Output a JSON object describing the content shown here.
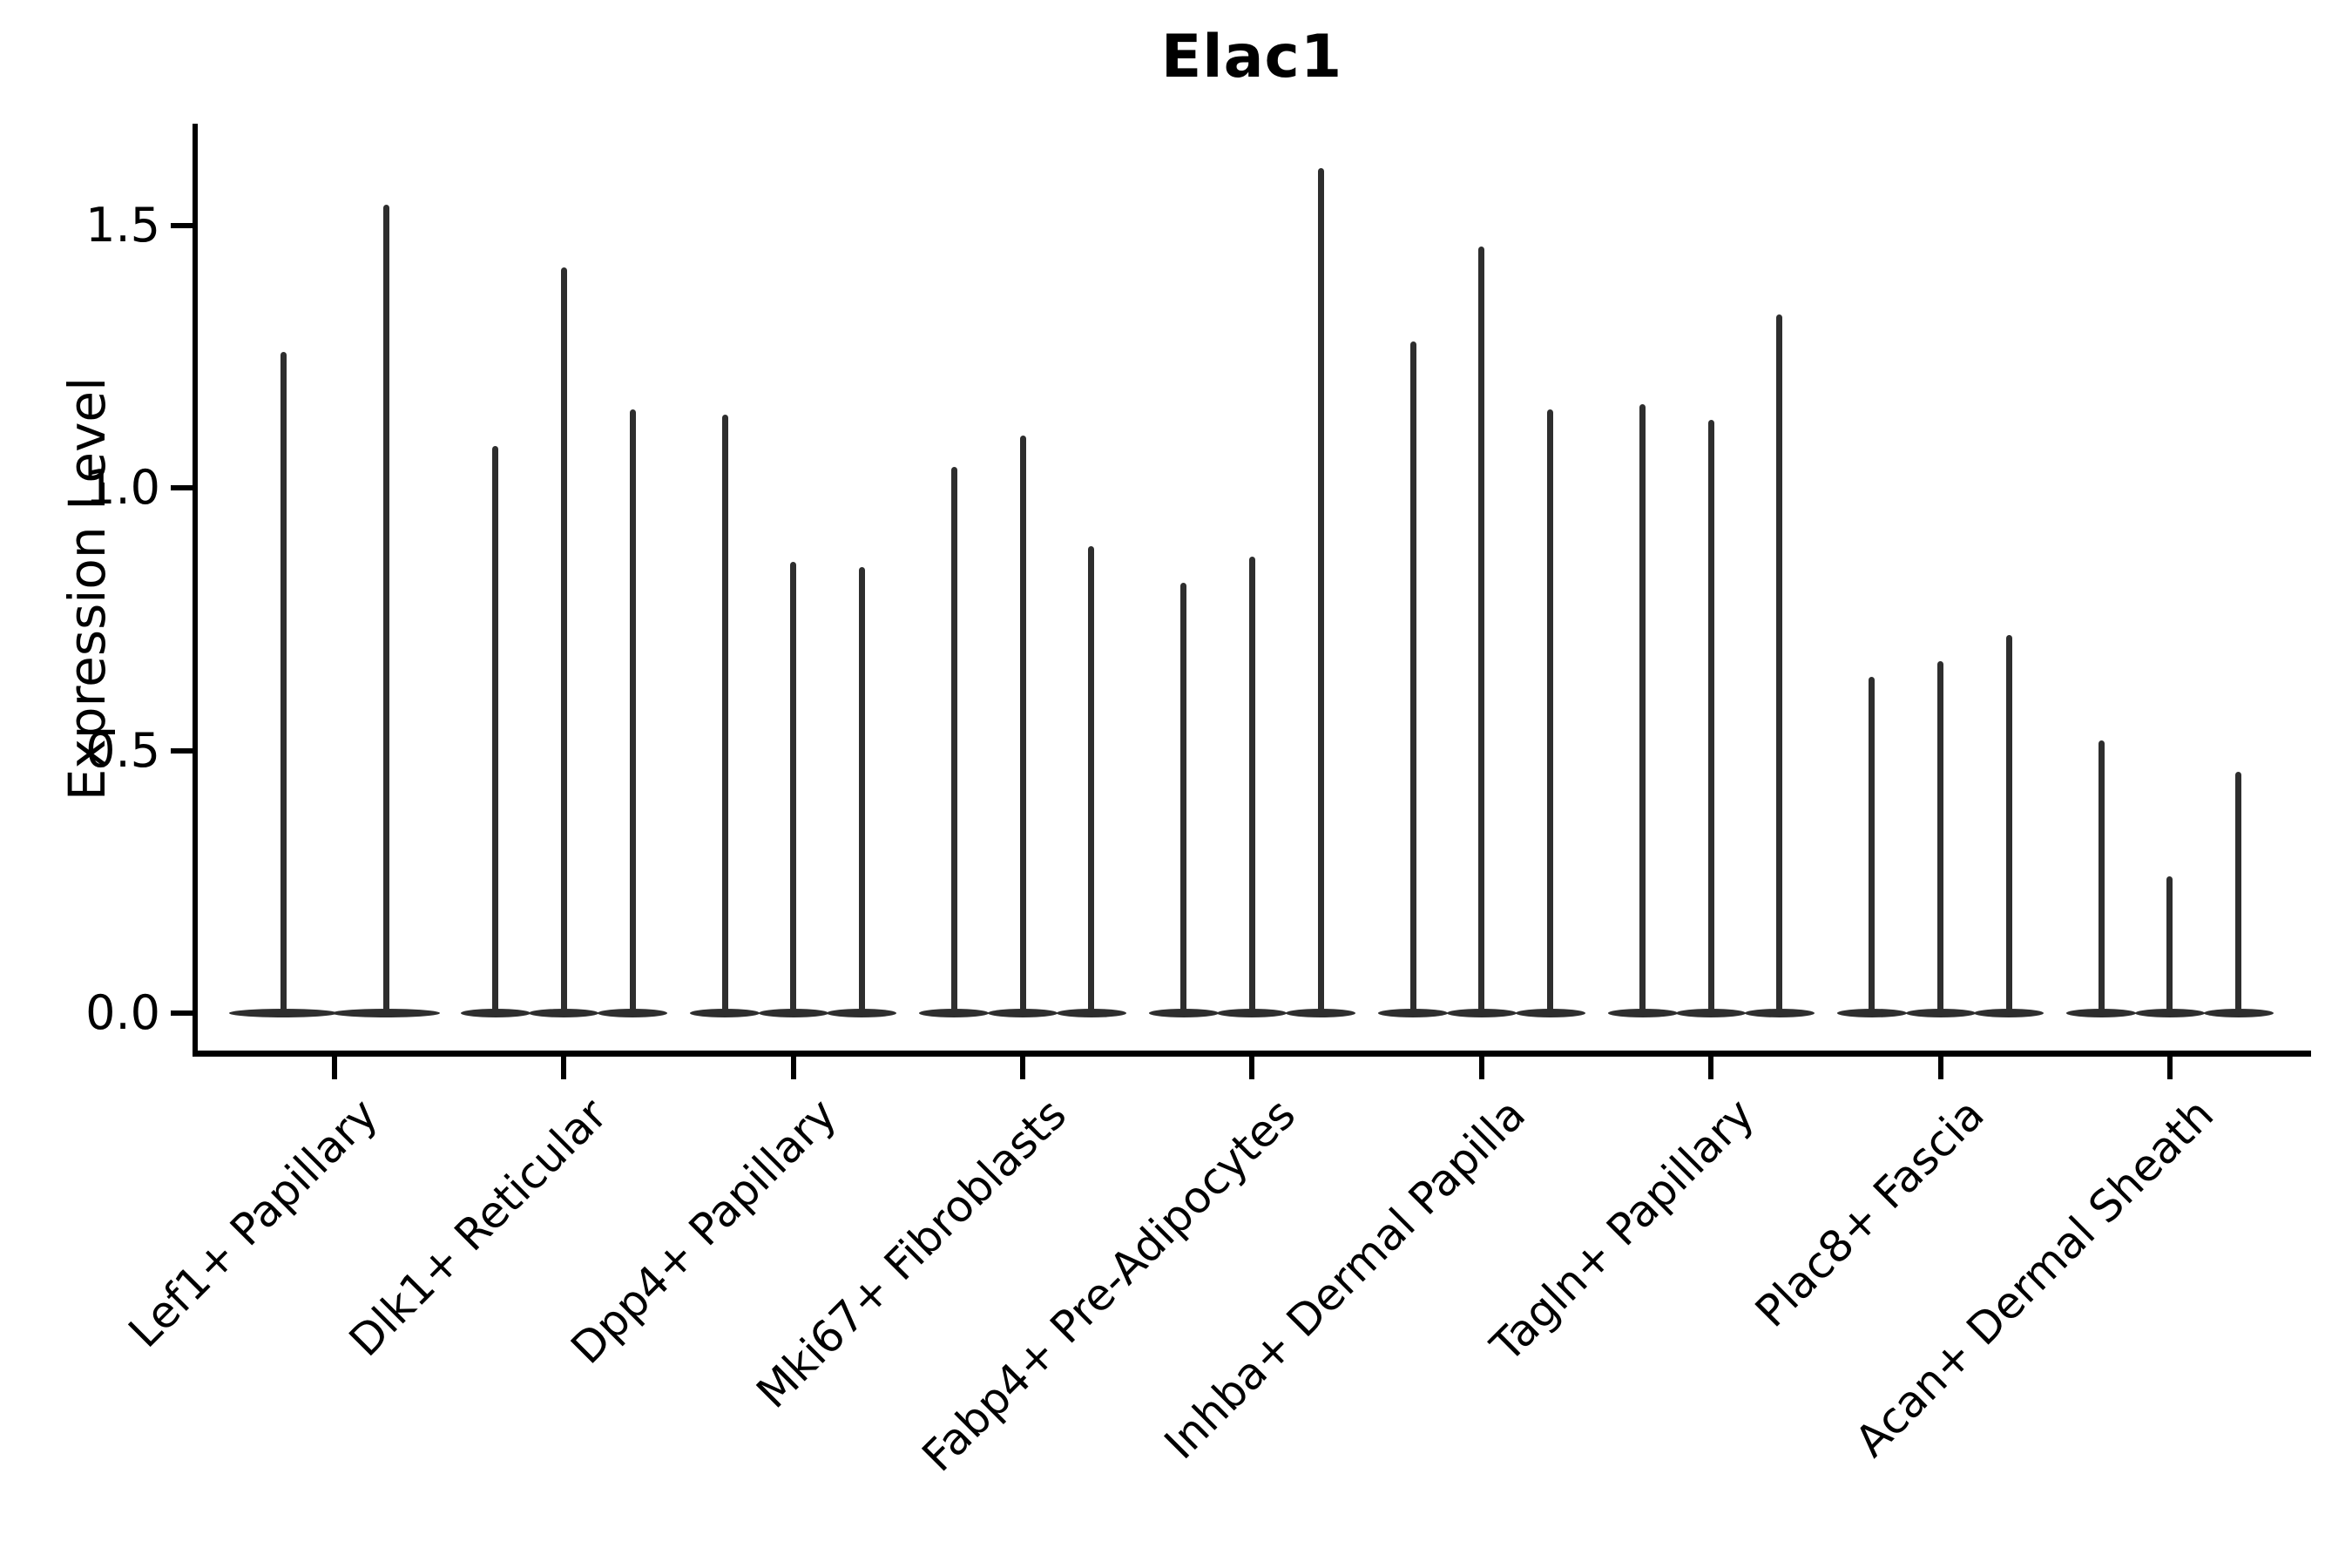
{
  "title": "Elac1",
  "y_axis": {
    "label": "Expression Level",
    "ticks": [
      {
        "label": "1.5",
        "value": 1.5
      },
      {
        "label": "1.0",
        "value": 1.0
      },
      {
        "label": "0.5",
        "value": 0.5
      },
      {
        "label": "0.0",
        "value": 0.0
      }
    ]
  },
  "chart_data": {
    "type": "violin",
    "title": "Elac1",
    "xlabel": "",
    "ylabel": "Expression Level",
    "ylim": [
      -0.08,
      1.69
    ],
    "yticks": [
      0.0,
      0.5,
      1.0,
      1.5
    ],
    "grid": false,
    "legend": "none",
    "categories": [
      "Lef1+ Papillary",
      "Dlk1+ Reticular",
      "Dpp4+ Papillary",
      "Mki67+ Fibroblasts",
      "Fabp4+ Pre-Adipocytes",
      "Inhba+ Dermal Papilla",
      "Tagln+ Papillary",
      "Plac8+ Fascia",
      "Acan+ Dermal Sheath"
    ],
    "violin_max_values": [
      [
        1.26,
        1.54
      ],
      [
        1.08,
        1.42,
        1.15
      ],
      [
        1.14,
        0.86,
        0.85
      ],
      [
        1.04,
        1.1,
        0.89
      ],
      [
        0.82,
        0.87,
        1.61
      ],
      [
        1.28,
        1.46,
        1.15
      ],
      [
        1.16,
        1.13,
        1.33
      ],
      [
        0.64,
        0.67,
        0.72
      ],
      [
        0.52,
        0.26,
        0.46
      ]
    ],
    "violin_baseline_value": 0.0
  },
  "colors": {
    "violin": "#2e2e2e",
    "axis": "#000000",
    "text": "#000000",
    "background": "#ffffff"
  }
}
